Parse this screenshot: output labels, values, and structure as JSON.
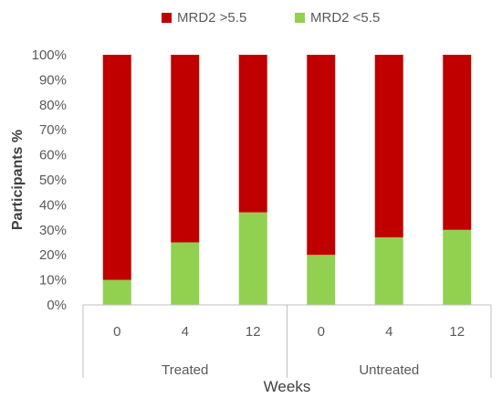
{
  "chart_data": {
    "type": "bar",
    "stacked": true,
    "title": "",
    "xlabel": "Weeks",
    "ylabel": "Participants %",
    "ylim": [
      0,
      100
    ],
    "yticks": [
      "0%",
      "10%",
      "20%",
      "30%",
      "40%",
      "50%",
      "60%",
      "70%",
      "80%",
      "90%",
      "100%"
    ],
    "categories": [
      "0",
      "4",
      "12",
      "0",
      "4",
      "12"
    ],
    "groups": [
      {
        "label": "Treated",
        "categories": [
          "0",
          "4",
          "12"
        ]
      },
      {
        "label": "Untreated",
        "categories": [
          "0",
          "4",
          "12"
        ]
      }
    ],
    "series": [
      {
        "name": "MRD2 <5.5",
        "color": "#92d050",
        "values": [
          10,
          25,
          37,
          20,
          27,
          30
        ]
      },
      {
        "name": "MRD2 >5.5",
        "color": "#c00000",
        "values": [
          90,
          75,
          63,
          80,
          73,
          70
        ]
      }
    ],
    "legend": {
      "position": "top",
      "order": [
        "MRD2 >5.5",
        "MRD2 <5.5"
      ]
    },
    "grid": false
  }
}
